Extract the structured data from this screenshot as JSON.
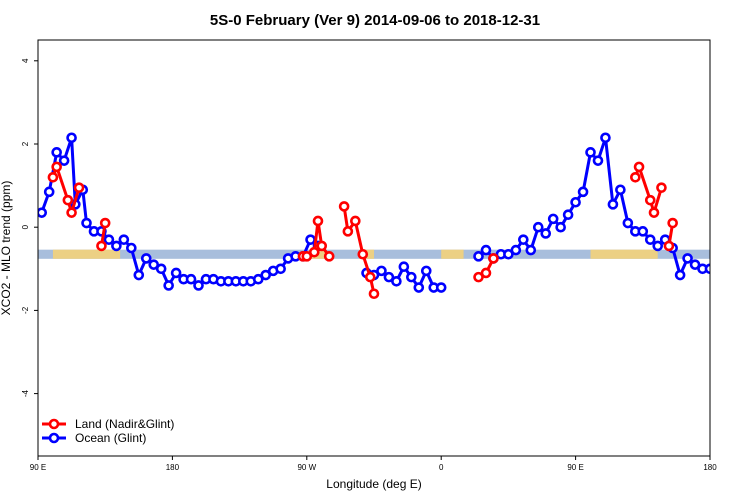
{
  "chart_data": {
    "type": "line",
    "title": "5S-0 February (Ver 9)   2014-09-06 to 2018-12-31",
    "xlabel": "Longitude (deg E)",
    "ylabel": "XCO2 - MLO trend (ppm)",
    "x_ticks": [
      {
        "value": 90,
        "label": "90 E"
      },
      {
        "value": 180,
        "label": "180"
      },
      {
        "value": 270,
        "label": "90 W"
      },
      {
        "value": 360,
        "label": "0"
      },
      {
        "value": 450,
        "label": "90 E"
      },
      {
        "value": 540,
        "label": "180"
      }
    ],
    "y_ticks": [
      {
        "value": -4,
        "label": "-4"
      },
      {
        "value": -2,
        "label": "-2"
      },
      {
        "value": 0,
        "label": "0"
      },
      {
        "value": 2,
        "label": "2"
      },
      {
        "value": 4,
        "label": "4"
      }
    ],
    "xlim": [
      90,
      540
    ],
    "ylim": [
      -5.5,
      4.5
    ],
    "grid": false,
    "legend_position": "bottom-left",
    "band": {
      "y_min": -0.76,
      "y_max": -0.54,
      "color": "#a8bedc",
      "land_color": "#f3d27a"
    },
    "land_segments": [
      [
        100,
        145
      ],
      [
        272,
        283
      ],
      [
        305,
        315
      ],
      [
        360,
        375
      ],
      [
        460,
        505
      ]
    ],
    "series": [
      {
        "name": "Land (Nadir&Glint)",
        "color": "#ff0000",
        "segments": [
          [
            [
              100,
              1.2
            ],
            [
              102.5,
              1.45
            ],
            [
              110,
              0.65
            ],
            [
              112.5,
              0.35
            ],
            [
              117.5,
              0.95
            ]
          ],
          [
            [
              132.5,
              -0.45
            ],
            [
              135,
              0.1
            ]
          ],
          [
            [
              267.5,
              -0.7
            ],
            [
              270,
              -0.7
            ],
            [
              275,
              -0.6
            ],
            [
              277.5,
              0.15
            ],
            [
              280,
              -0.45
            ],
            [
              285,
              -0.7
            ]
          ],
          [
            [
              295,
              0.5
            ],
            [
              297.5,
              -0.1
            ],
            [
              302.5,
              0.15
            ],
            [
              307.5,
              -0.65
            ],
            [
              312.5,
              -1.2
            ],
            [
              315,
              -1.6
            ]
          ],
          [
            [
              385,
              -1.2
            ],
            [
              390,
              -1.1
            ],
            [
              395,
              -0.75
            ]
          ],
          [
            [
              490,
              1.2
            ],
            [
              492.5,
              1.45
            ],
            [
              500,
              0.65
            ],
            [
              502.5,
              0.35
            ],
            [
              507.5,
              0.95
            ]
          ],
          [
            [
              512.5,
              -0.45
            ],
            [
              515,
              0.1
            ]
          ]
        ]
      },
      {
        "name": "Ocean (Glint)",
        "color": "#0000ff",
        "segments": [
          [
            [
              92.5,
              0.35
            ],
            [
              97.5,
              0.85
            ],
            [
              102.5,
              1.8
            ],
            [
              107.5,
              1.6
            ],
            [
              112.5,
              2.15
            ],
            [
              115,
              0.55
            ],
            [
              120,
              0.9
            ],
            [
              122.5,
              0.1
            ],
            [
              127.5,
              -0.1
            ],
            [
              132.5,
              -0.1
            ],
            [
              137.5,
              -0.3
            ],
            [
              142.5,
              -0.45
            ],
            [
              147.5,
              -0.3
            ],
            [
              152.5,
              -0.5
            ],
            [
              157.5,
              -1.15
            ],
            [
              162.5,
              -0.75
            ],
            [
              167.5,
              -0.9
            ],
            [
              172.5,
              -1.0
            ],
            [
              177.5,
              -1.4
            ],
            [
              182.5,
              -1.1
            ],
            [
              187.5,
              -1.25
            ],
            [
              192.5,
              -1.25
            ],
            [
              197.5,
              -1.4
            ],
            [
              202.5,
              -1.25
            ],
            [
              207.5,
              -1.25
            ],
            [
              212.5,
              -1.3
            ],
            [
              217.5,
              -1.3
            ],
            [
              222.5,
              -1.3
            ],
            [
              227.5,
              -1.3
            ],
            [
              232.5,
              -1.3
            ],
            [
              237.5,
              -1.25
            ],
            [
              242.5,
              -1.15
            ],
            [
              247.5,
              -1.05
            ],
            [
              252.5,
              -1.0
            ],
            [
              257.5,
              -0.75
            ],
            [
              262.5,
              -0.7
            ],
            [
              267.5,
              -0.7
            ],
            [
              272.5,
              -0.3
            ],
            [
              277.5,
              -0.45
            ]
          ],
          [
            [
              310,
              -1.1
            ],
            [
              315,
              -1.15
            ],
            [
              320,
              -1.05
            ],
            [
              325,
              -1.2
            ],
            [
              330,
              -1.3
            ],
            [
              335,
              -0.95
            ],
            [
              340,
              -1.2
            ],
            [
              345,
              -1.45
            ],
            [
              350,
              -1.05
            ],
            [
              355,
              -1.45
            ],
            [
              360,
              -1.45
            ]
          ],
          [
            [
              385,
              -0.7
            ],
            [
              390,
              -0.55
            ],
            [
              395,
              -0.75
            ],
            [
              400,
              -0.65
            ],
            [
              405,
              -0.65
            ],
            [
              410,
              -0.55
            ],
            [
              415,
              -0.3
            ],
            [
              420,
              -0.55
            ],
            [
              425,
              0.0
            ],
            [
              430,
              -0.15
            ],
            [
              435,
              0.2
            ],
            [
              440,
              0.0
            ],
            [
              445,
              0.3
            ],
            [
              450,
              0.6
            ],
            [
              455,
              0.85
            ],
            [
              460,
              1.8
            ],
            [
              465,
              1.6
            ],
            [
              470,
              2.15
            ],
            [
              475,
              0.55
            ],
            [
              480,
              0.9
            ],
            [
              485,
              0.1
            ],
            [
              490,
              -0.1
            ],
            [
              495,
              -0.1
            ],
            [
              500,
              -0.3
            ],
            [
              505,
              -0.45
            ],
            [
              510,
              -0.3
            ],
            [
              515,
              -0.5
            ],
            [
              520,
              -1.15
            ],
            [
              525,
              -0.75
            ],
            [
              530,
              -0.9
            ],
            [
              535,
              -1.0
            ],
            [
              540,
              -1.0
            ]
          ]
        ]
      }
    ]
  }
}
